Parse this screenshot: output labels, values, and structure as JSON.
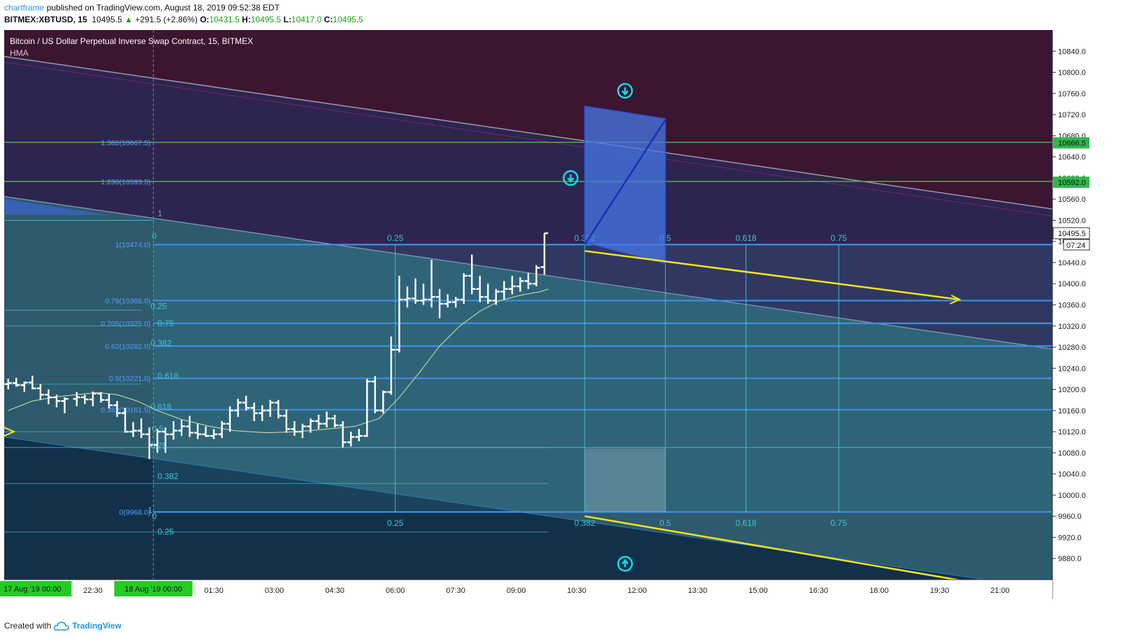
{
  "header": {
    "author": "chartframe",
    "published": "published on TradingView.com, August 18, 2019 09:52:38 EDT",
    "symbol_info": "BITMEX:XBTUSD, 15",
    "price": "10495.5",
    "change": "+291.5 (+2.86%)",
    "o_label": "O:",
    "o": "10431.5",
    "h_label": "H:",
    "h": "10495.5",
    "l_label": "L:",
    "l": "10417.0",
    "c_label": "C:",
    "c": "10495.5"
  },
  "footer": {
    "created_with": "Created with",
    "brand": "TradingView"
  },
  "chart_data": {
    "type": "candlestick",
    "title": "Bitcoin / US Dollar Perpetual Inverse Swap Contract, 15, BITMEX",
    "indicator": "HMA",
    "ylim": [
      9840,
      10880
    ],
    "y_ticks": [
      9880,
      9920,
      9960,
      10000,
      10040,
      10080,
      10120,
      10160,
      10200,
      10240,
      10280,
      10320,
      10360,
      10400,
      10440,
      10480,
      10520,
      10560,
      10600,
      10640,
      10680,
      10720,
      10760,
      10800,
      10840
    ],
    "y_tick_labels": [
      "9880.0",
      "9920.0",
      "9960.0",
      "10000.0",
      "10040.0",
      "10080.0",
      "10120.0",
      "10160.0",
      "10200.0",
      "10240.0",
      "10280.0",
      "10320.0",
      "10360.0",
      "10400.0",
      "10440.0",
      "10480.0",
      "10520.0",
      "10560.0",
      "10600.0",
      "10640.0",
      "10680.0",
      "10720.0",
      "10760.0",
      "10800.0",
      "10840.0"
    ],
    "x_tick_labels": [
      "22:30",
      "01:30",
      "03:00",
      "04:30",
      "06:00",
      "07:30",
      "09:00",
      "10:30",
      "12:00",
      "13:30",
      "15:00",
      "16:30",
      "18:00",
      "19:30",
      "21:00"
    ],
    "x_tick_hours": [
      -1.5,
      1.5,
      3,
      4.5,
      6,
      7.5,
      9,
      10.5,
      12,
      13.5,
      15,
      16.5,
      18,
      19.5,
      21
    ],
    "x_range_hours": [
      -3.7,
      22.3
    ],
    "date_labels": [
      {
        "text": "17 Aug '19   00:00",
        "hour": -3.0
      },
      {
        "text": "18 Aug '19   00:00",
        "hour": 0.0
      }
    ],
    "last_price": "10495.5",
    "countdown": "07:24",
    "price_markers": [
      {
        "label": "10666.5",
        "value": 10666.5
      },
      {
        "label": "10592.0",
        "value": 10592.0
      }
    ],
    "ohlc": [
      [
        -3.6,
        10210,
        10220,
        10200,
        10212
      ],
      [
        -3.4,
        10212,
        10222,
        10205,
        10208
      ],
      [
        -3.2,
        10208,
        10215,
        10195,
        10213
      ],
      [
        -3.0,
        10213,
        10226,
        10200,
        10202
      ],
      [
        -2.8,
        10202,
        10210,
        10180,
        10190
      ],
      [
        -2.6,
        10190,
        10200,
        10172,
        10185
      ],
      [
        -2.4,
        10185,
        10190,
        10166,
        10178
      ],
      [
        -2.2,
        10178,
        10185,
        10155,
        10182
      ],
      [
        -1.9,
        10182,
        10195,
        10168,
        10185
      ],
      [
        -1.7,
        10185,
        10190,
        10172,
        10181
      ],
      [
        -1.5,
        10181,
        10196,
        10168,
        10192
      ],
      [
        -1.3,
        10192,
        10195,
        10175,
        10180
      ],
      [
        -1.1,
        10180,
        10192,
        10164,
        10170
      ],
      [
        -0.9,
        10170,
        10178,
        10148,
        10155
      ],
      [
        -0.7,
        10155,
        10165,
        10118,
        10120
      ],
      [
        -0.5,
        10120,
        10138,
        10110,
        10122
      ],
      [
        -0.3,
        10122,
        10145,
        10108,
        10115
      ],
      [
        -0.1,
        10115,
        10128,
        10068,
        10095
      ],
      [
        0.1,
        10095,
        10125,
        10080,
        10120
      ],
      [
        0.3,
        10120,
        10128,
        10080,
        10115
      ],
      [
        0.5,
        10115,
        10140,
        10105,
        10122
      ],
      [
        0.7,
        10122,
        10142,
        10112,
        10130
      ],
      [
        0.9,
        10130,
        10150,
        10110,
        10118
      ],
      [
        1.1,
        10118,
        10135,
        10106,
        10115
      ],
      [
        1.3,
        10115,
        10130,
        10110,
        10112
      ],
      [
        1.5,
        10112,
        10125,
        10106,
        10115
      ],
      [
        1.7,
        10115,
        10140,
        10108,
        10135
      ],
      [
        1.9,
        10135,
        10168,
        10120,
        10160
      ],
      [
        2.1,
        10160,
        10182,
        10148,
        10175
      ],
      [
        2.3,
        10175,
        10188,
        10160,
        10165
      ],
      [
        2.5,
        10165,
        10175,
        10140,
        10155
      ],
      [
        2.7,
        10155,
        10170,
        10140,
        10160
      ],
      [
        2.9,
        10160,
        10180,
        10148,
        10175
      ],
      [
        3.1,
        10175,
        10180,
        10145,
        10150
      ],
      [
        3.3,
        10150,
        10162,
        10118,
        10125
      ],
      [
        3.5,
        10125,
        10140,
        10112,
        10120
      ],
      [
        3.7,
        10120,
        10135,
        10108,
        10130
      ],
      [
        3.9,
        10130,
        10145,
        10118,
        10140
      ],
      [
        4.1,
        10140,
        10152,
        10125,
        10135
      ],
      [
        4.3,
        10135,
        10158,
        10128,
        10145
      ],
      [
        4.5,
        10145,
        10152,
        10128,
        10132
      ],
      [
        4.7,
        10132,
        10140,
        10090,
        10100
      ],
      [
        4.9,
        10100,
        10120,
        10092,
        10110
      ],
      [
        5.1,
        10110,
        10125,
        10102,
        10112
      ],
      [
        5.3,
        10112,
        10220,
        10110,
        10215
      ],
      [
        5.5,
        10215,
        10225,
        10155,
        10160
      ],
      [
        5.7,
        10160,
        10198,
        10155,
        10195
      ],
      [
        5.9,
        10195,
        10300,
        10190,
        10275
      ],
      [
        6.1,
        10275,
        10415,
        10270,
        10370
      ],
      [
        6.3,
        10370,
        10395,
        10355,
        10372
      ],
      [
        6.5,
        10372,
        10410,
        10362,
        10368
      ],
      [
        6.7,
        10368,
        10400,
        10360,
        10370
      ],
      [
        6.9,
        10370,
        10445,
        10355,
        10375
      ],
      [
        7.1,
        10375,
        10390,
        10335,
        10362
      ],
      [
        7.3,
        10362,
        10380,
        10355,
        10365
      ],
      [
        7.5,
        10365,
        10375,
        10355,
        10370
      ],
      [
        7.7,
        10370,
        10420,
        10362,
        10415
      ],
      [
        7.9,
        10415,
        10455,
        10380,
        10390
      ],
      [
        8.1,
        10390,
        10415,
        10365,
        10375
      ],
      [
        8.3,
        10375,
        10400,
        10362,
        10368
      ],
      [
        8.5,
        10368,
        10390,
        10360,
        10385
      ],
      [
        8.7,
        10385,
        10405,
        10370,
        10390
      ],
      [
        8.9,
        10390,
        10415,
        10380,
        10395
      ],
      [
        9.1,
        10395,
        10412,
        10385,
        10405
      ],
      [
        9.3,
        10405,
        10420,
        10390,
        10400
      ],
      [
        9.5,
        10400,
        10435,
        10395,
        10430
      ],
      [
        9.7,
        10431.5,
        10495.5,
        10417,
        10495.5
      ]
    ],
    "hma": [
      [
        -3.6,
        10160
      ],
      [
        -3.0,
        10178
      ],
      [
        -2.4,
        10186
      ],
      [
        -1.9,
        10190
      ],
      [
        -1.4,
        10194
      ],
      [
        -0.9,
        10190
      ],
      [
        -0.4,
        10178
      ],
      [
        0.1,
        10160
      ],
      [
        0.7,
        10143
      ],
      [
        1.4,
        10130
      ],
      [
        2.0,
        10122
      ],
      [
        2.8,
        10118
      ],
      [
        3.6,
        10120
      ],
      [
        4.3,
        10125
      ],
      [
        5.0,
        10130
      ],
      [
        5.6,
        10145
      ],
      [
        6.1,
        10185
      ],
      [
        6.6,
        10232
      ],
      [
        7.1,
        10282
      ],
      [
        7.6,
        10320
      ],
      [
        8.1,
        10348
      ],
      [
        8.6,
        10368
      ],
      [
        9.1,
        10378
      ],
      [
        9.6,
        10385
      ],
      [
        9.8,
        10390
      ]
    ],
    "fib_levels": [
      {
        "label": "1.382(10667.5)",
        "value": 10667.5
      },
      {
        "label": "1.236(10593.5)",
        "value": 10593.5
      },
      {
        "label": "1(10474.0)",
        "value": 10474.0
      },
      {
        "label": "0.79(10368.0)",
        "value": 10368.0
      },
      {
        "label": "0.705(10325.0)",
        "value": 10325.0
      },
      {
        "label": "0.62(10282.0)",
        "value": 10282.0
      },
      {
        "label": "0.5(10221.0)",
        "value": 10221.0
      },
      {
        "label": "0.382(10161.5)",
        "value": 10161.5
      },
      {
        "label": "0(9968.0)",
        "value": 9968.0
      }
    ],
    "fib_time_top": [
      "0.25",
      "0.382",
      "0.5",
      "0.618",
      "0.75"
    ],
    "fib_time_bottom": [
      "0.25",
      "0.382",
      "0.5",
      "0.618",
      "0.75"
    ],
    "left_fan_labels": [
      "1",
      "0",
      "0.25",
      "0.75",
      "0.382",
      "0.618",
      "0.618",
      "0.5",
      "0.75",
      "0.382",
      "1",
      "0",
      "0.25"
    ]
  }
}
